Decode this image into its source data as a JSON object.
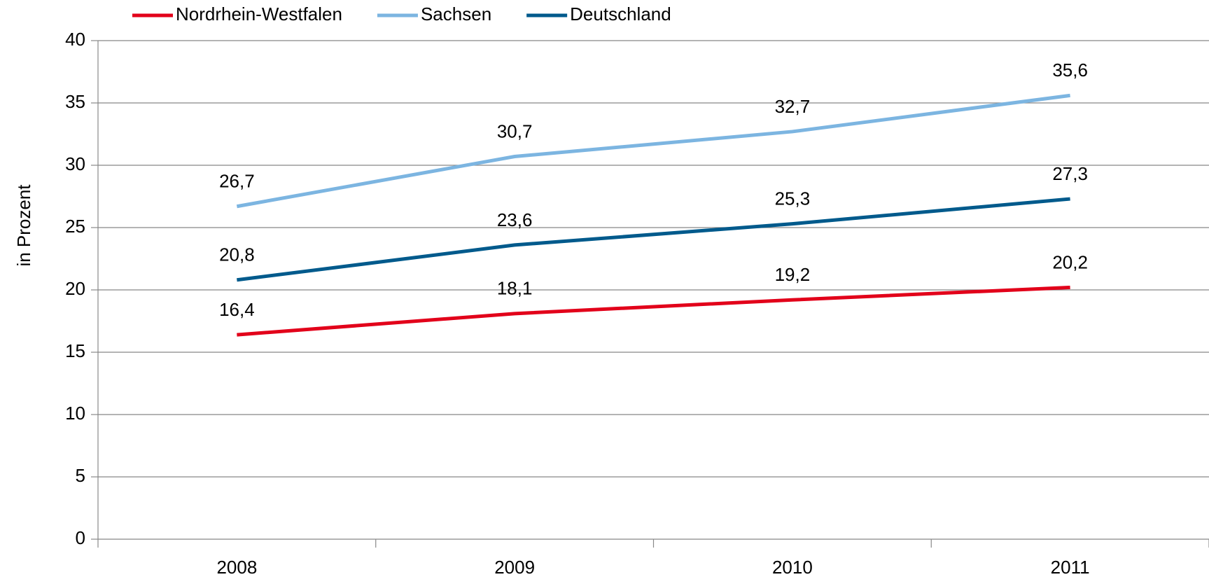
{
  "chart_data": {
    "type": "line",
    "y_label": "in Prozent",
    "categories": [
      "2008",
      "2009",
      "2010",
      "2011"
    ],
    "series": [
      {
        "name": "Nordrhein-Westfalen",
        "color": "#e2001a",
        "values": [
          16.4,
          18.1,
          19.2,
          20.2
        ],
        "value_labels": [
          "16,4",
          "18,1",
          "19,2",
          "20,2"
        ]
      },
      {
        "name": "Sachsen",
        "color": "#7cb5e1",
        "values": [
          26.7,
          30.7,
          32.7,
          35.6
        ],
        "value_labels": [
          "26,7",
          "30,7",
          "32,7",
          "35,6"
        ]
      },
      {
        "name": "Deutschland",
        "color": "#005a8c",
        "values": [
          20.8,
          23.6,
          25.3,
          27.3
        ],
        "value_labels": [
          "20,8",
          "23,6",
          "25,3",
          "27,3"
        ]
      }
    ],
    "ylim": [
      0,
      40
    ],
    "yticks": [
      0,
      5,
      10,
      15,
      20,
      25,
      30,
      35,
      40
    ],
    "grid": true,
    "legend": "top"
  }
}
